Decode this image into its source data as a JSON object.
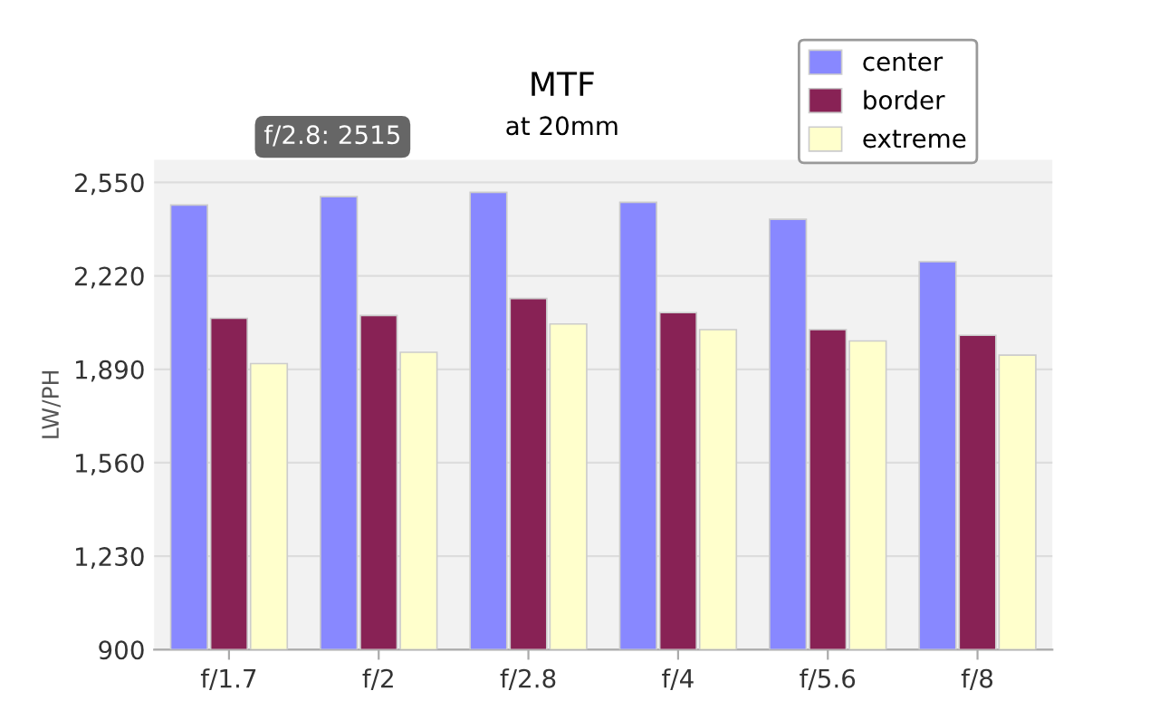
{
  "chart_data": {
    "type": "bar",
    "title": "MTF",
    "subtitle": "at 20mm",
    "ylabel": "LW/PH",
    "categories": [
      "f/1.7",
      "f/2",
      "f/2.8",
      "f/4",
      "f/5.6",
      "f/8"
    ],
    "series": [
      {
        "name": "center",
        "color": "#8888ff",
        "values": [
          2470,
          2500,
          2515,
          2480,
          2420,
          2270
        ]
      },
      {
        "name": "border",
        "color": "#882255",
        "values": [
          2070,
          2080,
          2140,
          2090,
          2030,
          2010
        ]
      },
      {
        "name": "extreme",
        "color": "#ffffcc",
        "values": [
          1910,
          1950,
          2050,
          2030,
          1990,
          1940
        ]
      }
    ],
    "ylim": [
      900,
      2630
    ],
    "yticks": [
      {
        "value": 900,
        "label": "900"
      },
      {
        "value": 1230,
        "label": "1,230"
      },
      {
        "value": 1560,
        "label": "1,560"
      },
      {
        "value": 1890,
        "label": "1,890"
      },
      {
        "value": 2220,
        "label": "2,220"
      },
      {
        "value": 2550,
        "label": "2,550"
      }
    ],
    "annotations": [
      "f/2.8: 2515"
    ],
    "grid": "y",
    "legend": "top right"
  }
}
